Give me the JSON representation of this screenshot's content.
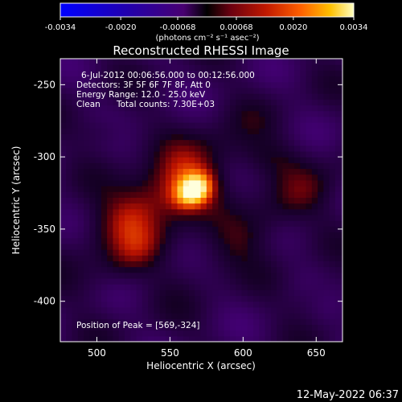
{
  "chart_data": {
    "type": "heatmap",
    "title": "Reconstructed RHESSI Image",
    "xlabel": "Heliocentric X (arcsec)",
    "ylabel": "Heliocentric Y (arcsec)",
    "xlim": [
      475,
      668
    ],
    "ylim": [
      -428,
      -232
    ],
    "xticks": [
      500,
      550,
      600,
      650
    ],
    "yticks": [
      -250,
      -300,
      -350,
      -400
    ],
    "colorbar": {
      "ticks": [
        "-0.0034",
        "-0.0020",
        "-0.00068",
        "0.00068",
        "0.0020",
        "0.0034"
      ],
      "tick_values": [
        -0.0034,
        -0.002,
        -0.00068,
        0.00068,
        0.002,
        0.0034
      ],
      "units_label": "(photons cm⁻² s⁻¹ asec⁻²)",
      "range": [
        -0.0034,
        0.0034
      ]
    },
    "annotations": {
      "time_range": "6-Jul-2012 00:06:56.000 to 00:12:56.000",
      "detectors": "Detectors: 3F 5F 6F 7F 8F, Att 0",
      "energy": "Energy Range: 12.0 - 25.0 keV",
      "method": "Clean",
      "total_counts": "Total counts: 7.30E+03",
      "peak": "Position of Peak = [569,-324]"
    },
    "peak_position": [
      569,
      -324
    ],
    "timestamp": "12-May-2022 06:37",
    "sources": [
      {
        "x": 567,
        "y": -323,
        "amp": 1.0,
        "sx": 11,
        "sy": 8,
        "angle": 35
      },
      {
        "x": 548,
        "y": -318,
        "amp": 0.55,
        "sx": 40,
        "sy": 13,
        "angle": 35
      },
      {
        "x": 535,
        "y": -340,
        "amp": 0.4,
        "sx": 30,
        "sy": 16,
        "angle": 35
      },
      {
        "x": 615,
        "y": -345,
        "amp": 0.42,
        "sx": 45,
        "sy": 12,
        "angle": 35
      },
      {
        "x": 612,
        "y": -300,
        "amp": 0.3,
        "sx": 18,
        "sy": 10,
        "angle": 0
      },
      {
        "x": 522,
        "y": -372,
        "amp": 0.28,
        "sx": 22,
        "sy": 10,
        "angle": 35
      },
      {
        "x": 505,
        "y": -282,
        "amp": 0.25,
        "sx": 12,
        "sy": 8,
        "angle": 0
      },
      {
        "x": 650,
        "y": -395,
        "amp": 0.2,
        "sx": 14,
        "sy": 8,
        "angle": 35
      }
    ]
  }
}
